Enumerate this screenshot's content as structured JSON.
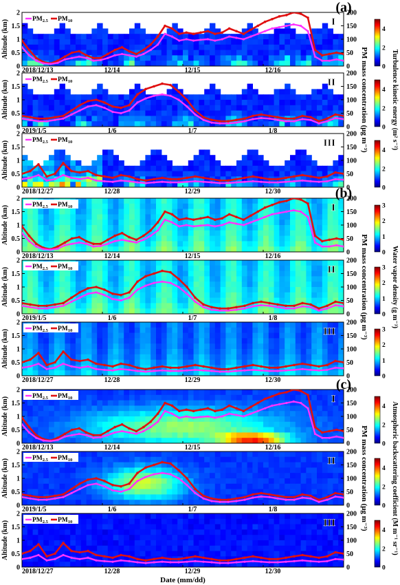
{
  "figure": {
    "x_axis_label": "Date (mm/dd)",
    "y_axis_label_left": "Altitude (km)",
    "y_axis_label_right": "PM mass concentration (μg m⁻³)",
    "series_labels": {
      "pm25": "PM",
      "pm25_sub": "2.5",
      "pm10": "PM",
      "pm10_sub": "10"
    }
  },
  "colors": {
    "pm25": "#ff33ff",
    "pm10": "#e01010",
    "jet": [
      "#00007f",
      "#0000ff",
      "#0080ff",
      "#00ffff",
      "#80ff80",
      "#ffff00",
      "#ff8000",
      "#ff0000",
      "#7f0000"
    ]
  },
  "groups": [
    {
      "letter": "(a)",
      "colorbar_label": "Turbulence kinetic energy (m² s⁻²)",
      "colorbar_ticks": [
        "0",
        "2",
        "4"
      ],
      "colorbar_max": 5
    },
    {
      "letter": "(b)",
      "colorbar_label": "Water vapor density (g m⁻³)",
      "colorbar_ticks": [
        "0",
        "1",
        "2",
        "3"
      ],
      "colorbar_max": 3
    },
    {
      "letter": "(c)",
      "colorbar_label": "Atmospheric backscattering coefficient (M m⁻¹ sr⁻¹)",
      "colorbar_ticks": [
        "0",
        "2",
        "4"
      ],
      "colorbar_max": 5
    }
  ],
  "chart_data": {
    "type": "line",
    "shared_axes": {
      "y_left": {
        "label": "Altitude (km)",
        "range": [
          0,
          2
        ],
        "ticks": [
          "0",
          "0.5",
          "1",
          "1.5",
          "2"
        ]
      },
      "y_right": {
        "label": "PM mass concentration (μg m⁻³)",
        "range": [
          0,
          200
        ],
        "ticks": [
          "0",
          "50",
          "100",
          "150",
          "200"
        ]
      },
      "x_label": "Date (mm/dd)"
    },
    "cases": [
      {
        "roman": "I",
        "x_ticks": [
          "2018/12/13",
          "12/14",
          "12/15",
          "12/16"
        ],
        "x_tick_fraction": [
          0.0,
          0.25,
          0.5,
          0.75
        ],
        "pm10": [
          95,
          60,
          30,
          15,
          10,
          20,
          35,
          50,
          55,
          40,
          30,
          30,
          45,
          60,
          70,
          55,
          45,
          60,
          80,
          110,
          150,
          140,
          120,
          125,
          120,
          125,
          130,
          120,
          125,
          140,
          130,
          120,
          135,
          150,
          165,
          175,
          185,
          190,
          200,
          195,
          180,
          60,
          40,
          45,
          50,
          45
        ],
        "pm25": [
          70,
          40,
          20,
          10,
          8,
          12,
          25,
          30,
          35,
          30,
          20,
          22,
          30,
          40,
          45,
          40,
          35,
          45,
          60,
          80,
          120,
          110,
          95,
          100,
          95,
          98,
          100,
          95,
          100,
          110,
          105,
          100,
          110,
          120,
          130,
          140,
          145,
          150,
          155,
          150,
          130,
          35,
          20,
          20,
          25,
          20
        ]
      },
      {
        "roman": "II",
        "x_ticks": [
          "2019/1/5",
          "1/6",
          "1/7",
          "1/8"
        ],
        "x_tick_fraction": [
          0.0,
          0.25,
          0.5,
          0.75
        ],
        "pm10": [
          40,
          35,
          30,
          30,
          35,
          40,
          60,
          80,
          95,
          100,
          90,
          75,
          70,
          80,
          120,
          140,
          150,
          160,
          155,
          130,
          100,
          60,
          35,
          25,
          20,
          20,
          25,
          30,
          40,
          45,
          40,
          35,
          30,
          30,
          40,
          35,
          20,
          30,
          45,
          40
        ],
        "pm25": [
          30,
          25,
          20,
          20,
          25,
          30,
          45,
          60,
          75,
          80,
          70,
          55,
          50,
          60,
          90,
          105,
          115,
          120,
          115,
          100,
          75,
          45,
          25,
          15,
          12,
          12,
          15,
          20,
          28,
          32,
          30,
          25,
          20,
          20,
          28,
          25,
          12,
          20,
          32,
          28
        ]
      },
      {
        "roman": "III",
        "x_ticks": [
          "2018/12/27",
          "12/28",
          "12/29",
          "12/30"
        ],
        "x_tick_fraction": [
          0.0,
          0.25,
          0.5,
          0.75
        ],
        "pm10": [
          50,
          60,
          85,
          40,
          50,
          90,
          60,
          55,
          60,
          45,
          40,
          35,
          45,
          40,
          30,
          25,
          30,
          35,
          30,
          30,
          35,
          40,
          35,
          30,
          25,
          25,
          30,
          35,
          40,
          35,
          30,
          30,
          35,
          40,
          45,
          40,
          35,
          40,
          55,
          50
        ],
        "pm25": [
          30,
          35,
          45,
          25,
          30,
          45,
          35,
          30,
          35,
          25,
          22,
          20,
          25,
          22,
          18,
          15,
          18,
          20,
          18,
          18,
          20,
          22,
          20,
          18,
          15,
          15,
          18,
          20,
          22,
          20,
          18,
          18,
          20,
          22,
          25,
          22,
          20,
          22,
          30,
          28
        ]
      }
    ]
  }
}
